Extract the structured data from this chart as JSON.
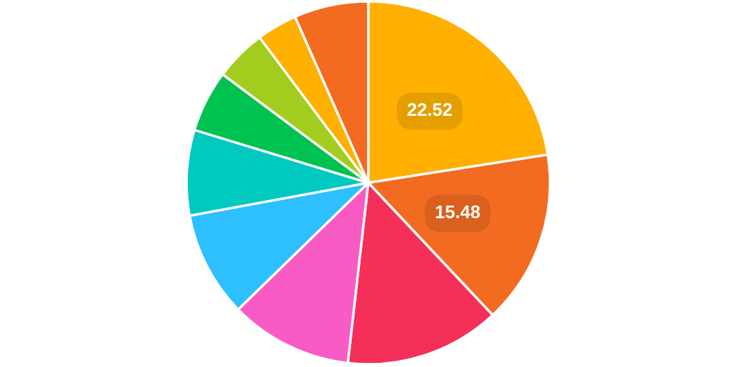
{
  "chart_data": {
    "type": "pie",
    "categories": [
      null,
      null,
      null,
      null,
      null,
      null,
      null,
      null,
      null,
      null
    ],
    "values": [
      22.52,
      15.48,
      13.8,
      10.9,
      9.4,
      7.6,
      5.5,
      4.6,
      3.6,
      6.6
    ],
    "colors": [
      "#ffb000",
      "#f26b21",
      "#f43059",
      "#f85cc4",
      "#2ebfff",
      "#00c9c0",
      "#00c251",
      "#a2cd1e",
      "#ffb000",
      "#f26b21"
    ],
    "value_labels": [
      "22.52",
      "15.48",
      null,
      null,
      null,
      null,
      null,
      null,
      null,
      null
    ]
  }
}
